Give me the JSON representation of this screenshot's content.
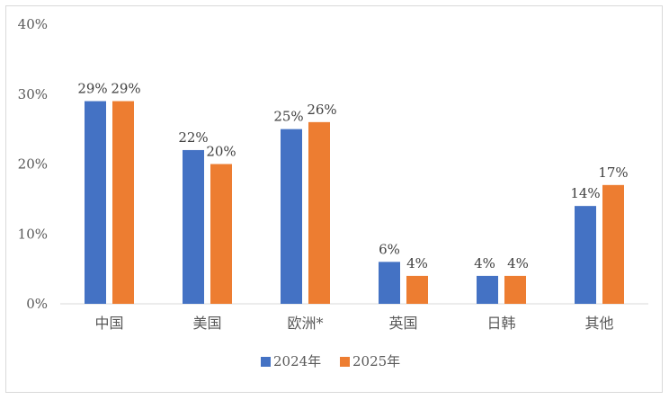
{
  "chart_data": {
    "type": "bar",
    "title": "",
    "xlabel": "",
    "ylabel": "",
    "categories": [
      "中国",
      "美国",
      "欧洲*",
      "英国",
      "日韩",
      "其他"
    ],
    "series": [
      {
        "name": "2024年",
        "values": [
          29,
          22,
          25,
          6,
          4,
          14
        ],
        "color": "#4472c4"
      },
      {
        "name": "2025年",
        "values": [
          29,
          20,
          26,
          4,
          4,
          17
        ],
        "color": "#ed7d31"
      }
    ],
    "value_suffix": "%",
    "ylim": [
      0,
      40
    ],
    "yticks": [
      0,
      10,
      20,
      30,
      40
    ],
    "grid": false,
    "legend": "bottom-center",
    "data_labels": true
  }
}
